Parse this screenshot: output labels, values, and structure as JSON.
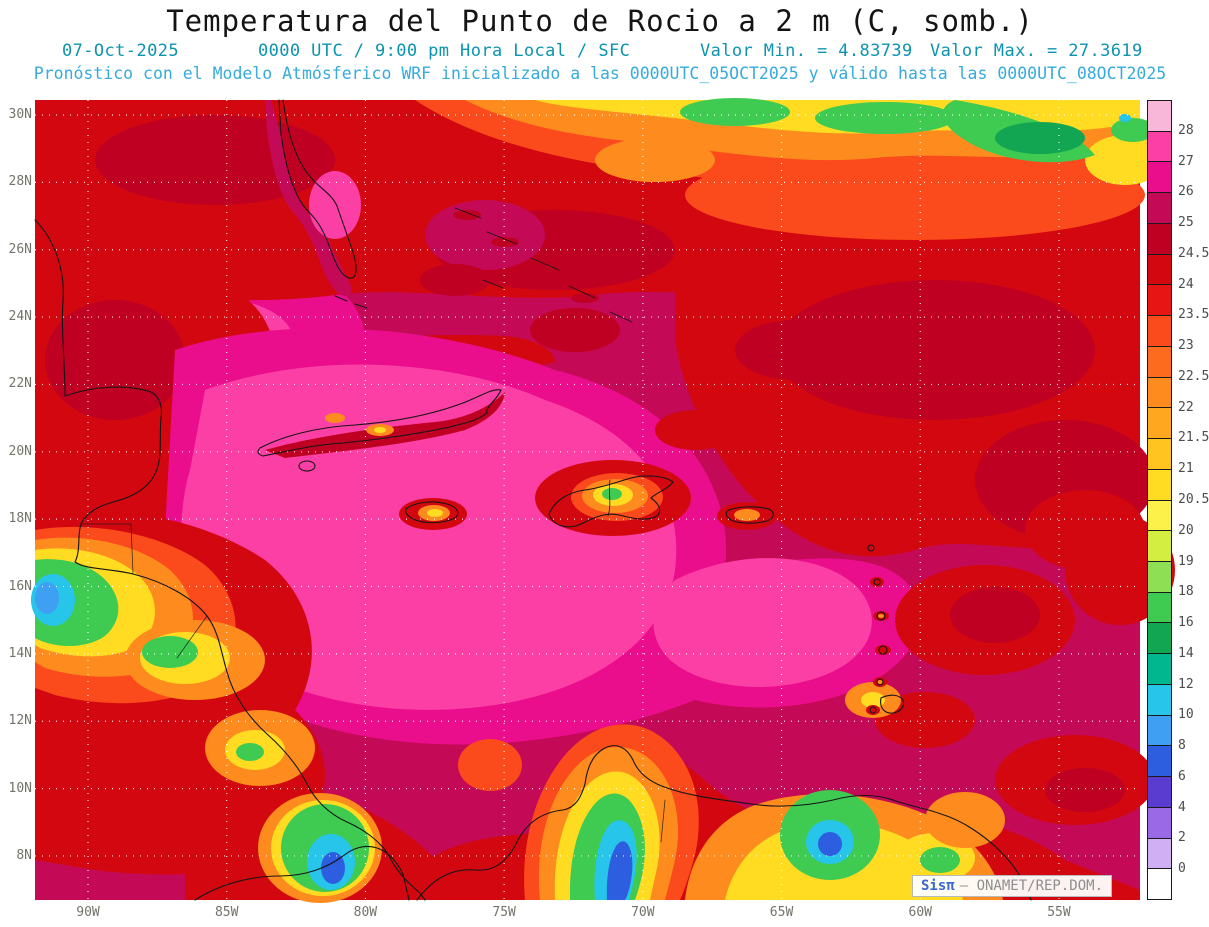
{
  "title": "Temperatura del Punto de Rocio a 2 m (C, somb.)",
  "header": {
    "date": "07-Oct-2025",
    "time": "0000 UTC / 9:00 pm Hora Local / SFC",
    "min": "Valor Min. = 4.83739",
    "max": "Valor Max. = 27.3619",
    "forecast": "Pronóstico con el Modelo Atmósferico WRF inicializado a las 0000UTC_05OCT2025 y válido hasta las  0000UTC_08OCT2025"
  },
  "map": {
    "lat_labels": [
      "30N",
      "28N",
      "26N",
      "24N",
      "22N",
      "20N",
      "18N",
      "16N",
      "14N",
      "12N",
      "10N",
      "8N"
    ],
    "lon_labels": [
      "90W",
      "85W",
      "80W",
      "75W",
      "70W",
      "65W",
      "60W",
      "55W"
    ]
  },
  "colorbar": {
    "labels": [
      "28",
      "27",
      "26",
      "25",
      "24.5",
      "24",
      "23.5",
      "23",
      "22.5",
      "22",
      "21.5",
      "21",
      "20.5",
      "20",
      "19",
      "18",
      "16",
      "14",
      "12",
      "10",
      "8",
      "6",
      "4",
      "2",
      "0"
    ],
    "colors": [
      "#f8b7d9",
      "#fb3fa4",
      "#ea0d8c",
      "#c40a56",
      "#bf0022",
      "#d30710",
      "#e81515",
      "#fb4a1c",
      "#fd6b1e",
      "#fe8b1e",
      "#ffa81f",
      "#ffc41f",
      "#ffdc22",
      "#fcf04a",
      "#d3ee41",
      "#8fdf55",
      "#3fca52",
      "#12a653",
      "#00b78f",
      "#27c5ea",
      "#3f9ff2",
      "#2e5ee0",
      "#5b3cd0",
      "#9a6ae6",
      "#cfb0f4",
      "#ffffff"
    ]
  },
  "watermark": {
    "brand": "Sisπ",
    "rest": "– ONAMET/REP.DOM."
  }
}
